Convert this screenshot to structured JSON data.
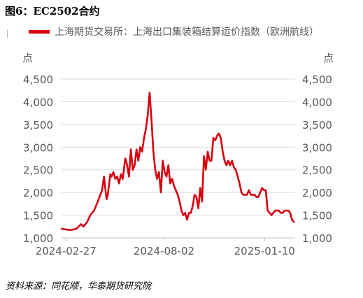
{
  "figure_title": "图6：EC2502合约",
  "source_note": "资料来源：同花顺，华泰期货研究院",
  "chart_data": {
    "type": "line",
    "title": "",
    "legend_position": "top",
    "y_unit_label": "点",
    "ylim": [
      1000,
      4500
    ],
    "yticks": [
      1000,
      1500,
      2000,
      2500,
      3000,
      3500,
      4000,
      4500
    ],
    "ytick_labels": [
      "1,000",
      "1,500",
      "2,000",
      "2,500",
      "3,000",
      "3,500",
      "4,000",
      "4,500"
    ],
    "grid": true,
    "line_color": "#d7000f",
    "x_start": "2024-02-20",
    "x_end": "2025-02-28",
    "xtick_dates": [
      "2024-02-27",
      "2024-08-02",
      "2025-01-10"
    ],
    "xtick_labels": [
      "2024-02-27",
      "2024-08-02",
      "2025-01-10"
    ],
    "series": [
      {
        "name": "上海期货交易所：上海出口集装箱结算运价指数（欧洲航线）",
        "x": [
          "2024-02-20",
          "2024-03-05",
          "2024-03-15",
          "2024-03-22",
          "2024-03-26",
          "2024-04-01",
          "2024-04-06",
          "2024-04-12",
          "2024-04-18",
          "2024-04-22",
          "2024-04-25",
          "2024-04-28",
          "2024-05-02",
          "2024-05-04",
          "2024-05-08",
          "2024-05-10",
          "2024-05-13",
          "2024-05-16",
          "2024-05-19",
          "2024-05-22",
          "2024-05-25",
          "2024-05-28",
          "2024-06-01",
          "2024-06-04",
          "2024-06-07",
          "2024-06-10",
          "2024-06-13",
          "2024-06-16",
          "2024-06-19",
          "2024-06-22",
          "2024-06-25",
          "2024-06-28",
          "2024-07-01",
          "2024-07-04",
          "2024-07-07",
          "2024-07-10",
          "2024-07-13",
          "2024-07-16",
          "2024-07-19",
          "2024-07-22",
          "2024-07-25",
          "2024-07-28",
          "2024-07-31",
          "2024-08-03",
          "2024-08-06",
          "2024-08-09",
          "2024-08-12",
          "2024-08-15",
          "2024-08-18",
          "2024-08-21",
          "2024-08-24",
          "2024-08-27",
          "2024-08-30",
          "2024-09-02",
          "2024-09-05",
          "2024-09-08",
          "2024-09-11",
          "2024-09-14",
          "2024-09-17",
          "2024-09-20",
          "2024-09-23",
          "2024-09-26",
          "2024-09-29",
          "2024-10-02",
          "2024-10-05",
          "2024-10-08",
          "2024-10-11",
          "2024-10-14",
          "2024-10-17",
          "2024-10-20",
          "2024-10-23",
          "2024-10-26",
          "2024-10-29",
          "2024-11-01",
          "2024-11-04",
          "2024-11-07",
          "2024-11-10",
          "2024-11-13",
          "2024-11-16",
          "2024-11-19",
          "2024-11-22",
          "2024-11-25",
          "2024-11-28",
          "2024-12-01",
          "2024-12-04",
          "2024-12-07",
          "2024-12-10",
          "2024-12-13",
          "2024-12-16",
          "2024-12-19",
          "2024-12-22",
          "2024-12-25",
          "2024-12-28",
          "2024-12-31",
          "2025-01-03",
          "2025-01-06",
          "2025-01-09",
          "2025-01-12",
          "2025-01-15",
          "2025-01-18",
          "2025-01-21",
          "2025-01-24",
          "2025-01-27",
          "2025-01-30",
          "2025-02-02",
          "2025-02-05",
          "2025-02-08",
          "2025-02-11",
          "2025-02-14",
          "2025-02-17",
          "2025-02-20",
          "2025-02-23",
          "2025-02-26"
        ],
        "values": [
          1200,
          1170,
          1200,
          1300,
          1250,
          1350,
          1500,
          1600,
          1800,
          1950,
          2050,
          2350,
          1850,
          1950,
          2400,
          2350,
          2450,
          2300,
          2350,
          2200,
          2400,
          2300,
          2750,
          2600,
          2350,
          2950,
          2500,
          2600,
          2950,
          2700,
          3000,
          2900,
          3200,
          3400,
          3700,
          4200,
          3600,
          2900,
          2500,
          2300,
          2450,
          2000,
          2700,
          2450,
          2350,
          2600,
          2200,
          2300,
          2150,
          2050,
          1950,
          1800,
          1600,
          1500,
          1550,
          1400,
          1550,
          1550,
          1700,
          1950,
          1900,
          1650,
          2100,
          1800,
          2800,
          2500,
          2900,
          2700,
          2700,
          3200,
          3150,
          3250,
          3300,
          3200,
          2900,
          2700,
          2600,
          2700,
          2600,
          2700,
          2550,
          2500,
          2350,
          2200,
          2000,
          1950,
          1950,
          1950,
          2050,
          1950,
          1950,
          1950,
          1900,
          1900,
          2000,
          2100,
          2050,
          2050,
          1600,
          1550,
          1500,
          1550,
          1600,
          1600,
          1600,
          1550,
          1550,
          1600,
          1600,
          1600,
          1550,
          1400,
          1350
        ]
      }
    ]
  }
}
